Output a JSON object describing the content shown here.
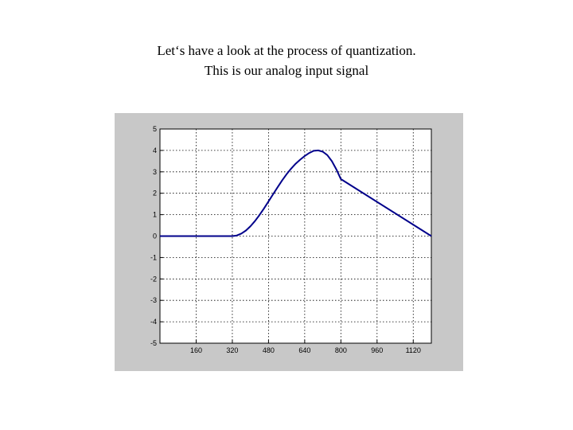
{
  "slide": {
    "line1": "Let‘s have a look at the process of quantization.",
    "line2": "This is our analog input signal"
  },
  "chart_data": {
    "type": "line",
    "title": "",
    "xlabel": "",
    "ylabel": "",
    "xlim": [
      0,
      1200
    ],
    "ylim": [
      -5,
      5
    ],
    "grid": true,
    "x_ticks": [
      160,
      320,
      480,
      640,
      800,
      960,
      1120
    ],
    "y_ticks": [
      5,
      4,
      3,
      2,
      1,
      0,
      -1,
      -2,
      -3,
      -4,
      -5
    ],
    "x_tick_labels": [
      "160",
      "320",
      "480",
      "640",
      "800",
      "960",
      "1120"
    ],
    "y_tick_labels": [
      "5",
      "4",
      "3",
      "2",
      "1",
      "0",
      "-1",
      "-2",
      "-3",
      "-4",
      "-5"
    ],
    "series": [
      {
        "color": "#00008b",
        "x": [
          0,
          320,
          340,
          360,
          380,
          400,
          420,
          440,
          460,
          480,
          500,
          520,
          540,
          560,
          580,
          600,
          620,
          640,
          660,
          680,
          700,
          720,
          740,
          760,
          780,
          800,
          1200
        ],
        "y": [
          0,
          0,
          0.03,
          0.12,
          0.26,
          0.46,
          0.7,
          0.98,
          1.29,
          1.62,
          1.95,
          2.28,
          2.6,
          2.89,
          3.15,
          3.38,
          3.57,
          3.74,
          3.88,
          3.98,
          4.0,
          3.94,
          3.78,
          3.5,
          3.12,
          2.66,
          0
        ]
      }
    ]
  }
}
